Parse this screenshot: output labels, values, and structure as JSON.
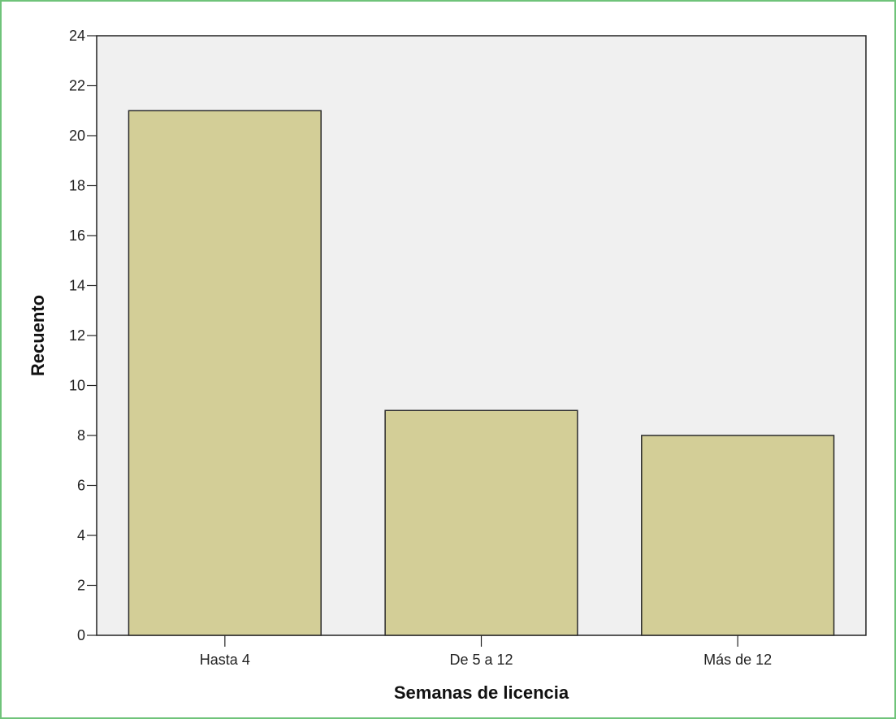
{
  "chart_data": {
    "type": "bar",
    "categories": [
      "Hasta 4",
      "De 5 a 12",
      "Más de 12"
    ],
    "values": [
      21,
      9,
      8
    ],
    "xlabel": "Semanas de licencia",
    "ylabel": "Recuento",
    "ylim": [
      0,
      24
    ],
    "yticks": [
      0,
      2,
      4,
      6,
      8,
      10,
      12,
      14,
      16,
      18,
      20,
      22,
      24
    ],
    "grid": false,
    "legend": "none"
  },
  "colors": {
    "frame": "#6fc37a",
    "plot_background": "#f0f0f0",
    "bar_fill": "#d3ce97",
    "bar_stroke": "#2b2b2b",
    "axis": "#222222"
  }
}
